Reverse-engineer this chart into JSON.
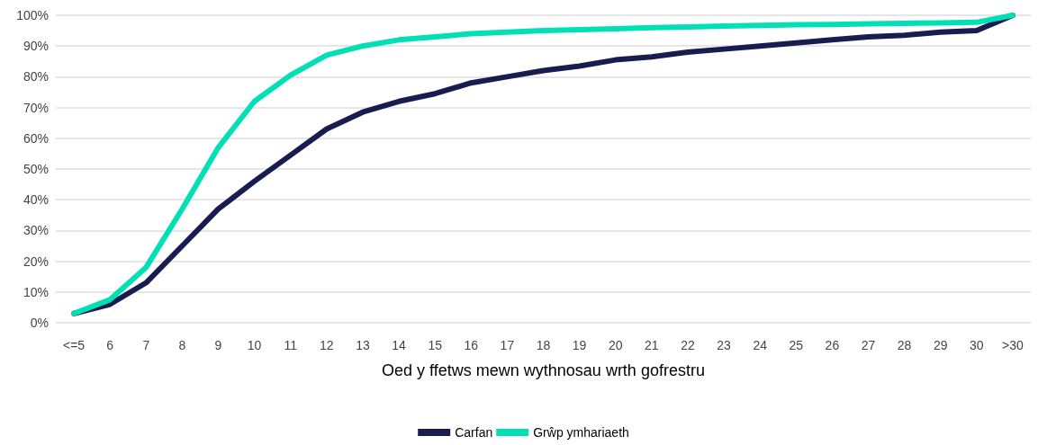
{
  "chart_data": {
    "type": "line",
    "xlabel": "Oed y ffetws mewn wythnosau wrth gofrestru",
    "categories": [
      "<=5",
      "6",
      "7",
      "8",
      "9",
      "10",
      "11",
      "12",
      "13",
      "14",
      "15",
      "16",
      "17",
      "18",
      "19",
      "20",
      "21",
      "22",
      "23",
      "24",
      "25",
      "26",
      "27",
      "28",
      "29",
      "30",
      ">30"
    ],
    "series": [
      {
        "name": "Carfan",
        "color": "#191c4f",
        "values": [
          3,
          6,
          13,
          25,
          37,
          46,
          54.5,
          63,
          68.5,
          72,
          74.5,
          78,
          80,
          82,
          83.5,
          85.5,
          86.5,
          88,
          89,
          90,
          91,
          92,
          93,
          93.5,
          94.5,
          95,
          100
        ]
      },
      {
        "name": "Grŵp ymhariaeth",
        "color": "#00e0b4",
        "values": [
          3,
          7.5,
          18,
          37,
          57,
          72,
          80.5,
          87,
          90,
          92,
          93,
          94,
          94.5,
          95,
          95.3,
          95.6,
          96,
          96.2,
          96.5,
          96.7,
          96.9,
          97,
          97.2,
          97.4,
          97.5,
          97.7,
          100
        ]
      }
    ],
    "ylim": [
      0,
      100
    ],
    "yticks": [
      {
        "value": 0,
        "label": "0%"
      },
      {
        "value": 10,
        "label": "10%"
      },
      {
        "value": 20,
        "label": "20%"
      },
      {
        "value": 30,
        "label": "30%"
      },
      {
        "value": 40,
        "label": "40%"
      },
      {
        "value": 50,
        "label": "50%"
      },
      {
        "value": 60,
        "label": "60%"
      },
      {
        "value": 70,
        "label": "70%"
      },
      {
        "value": 80,
        "label": "80%"
      },
      {
        "value": 90,
        "label": "90%"
      },
      {
        "value": 100,
        "label": "100%"
      }
    ],
    "grid": "y",
    "legend": "bottom",
    "marker": "none",
    "line_style": "solid"
  }
}
